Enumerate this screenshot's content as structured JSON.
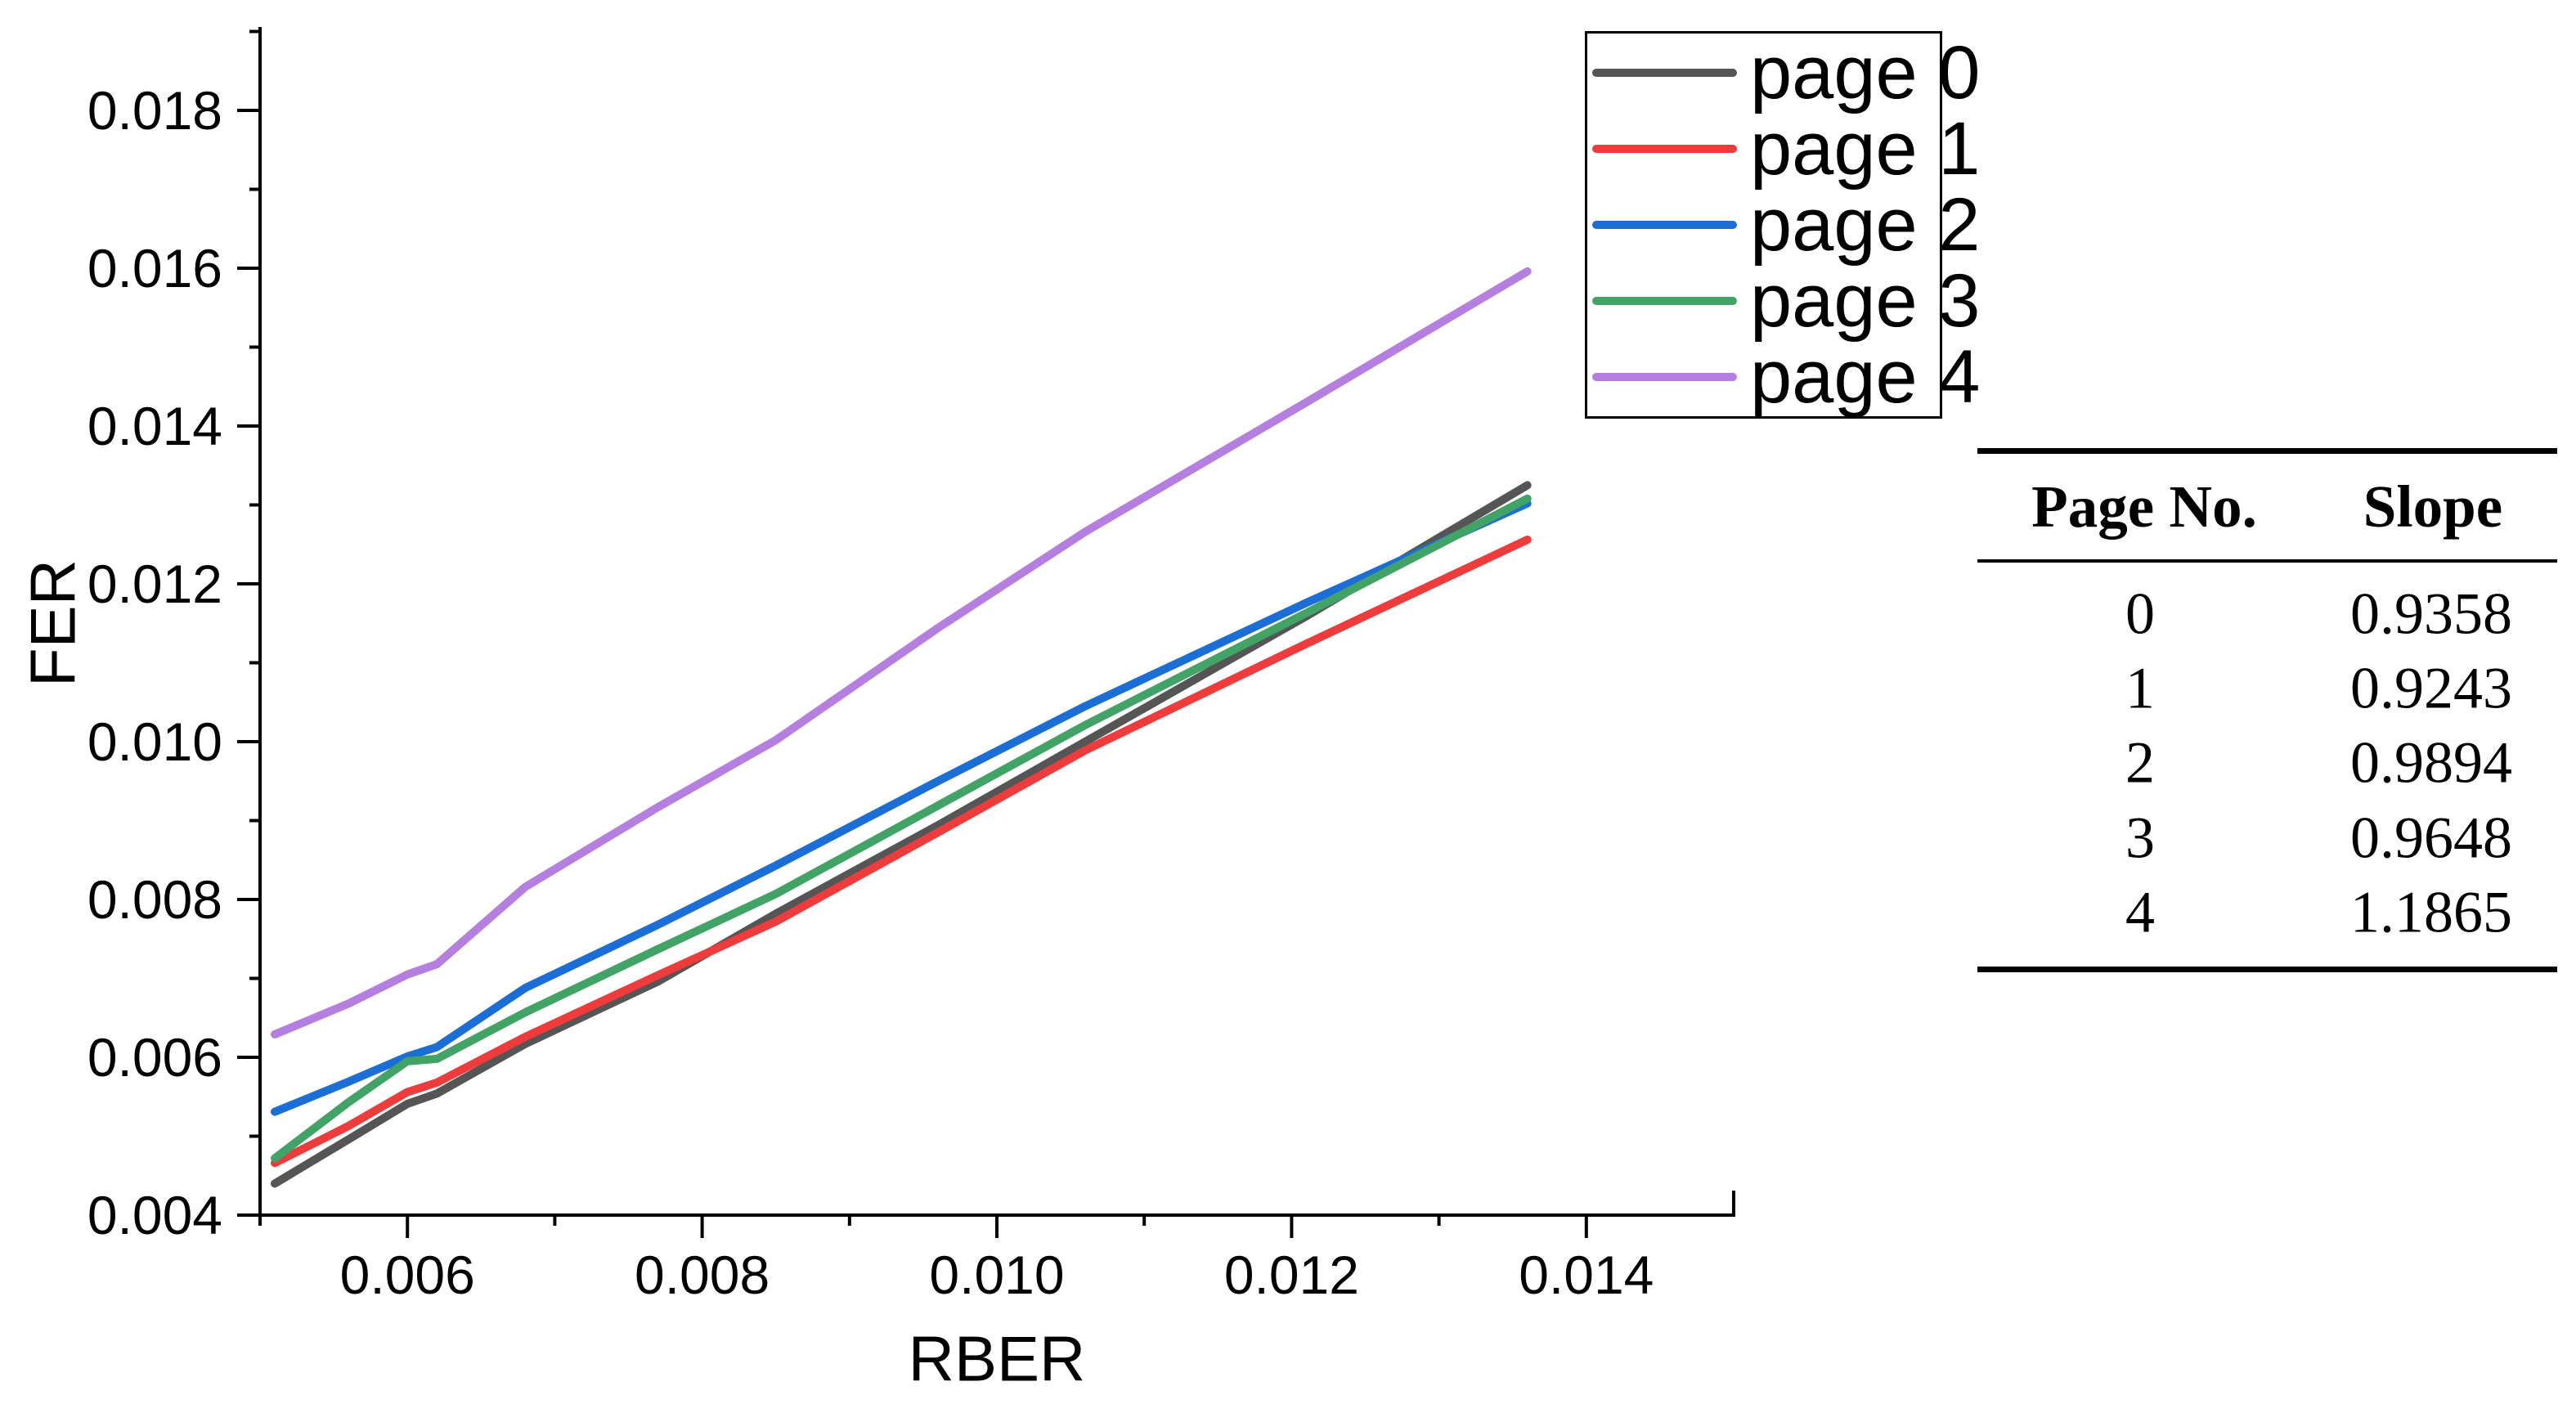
{
  "chart_data": {
    "type": "line",
    "title": "",
    "xlabel": "RBER",
    "ylabel": "FER",
    "xlim": [
      0.005,
      0.015
    ],
    "ylim": [
      0.004,
      0.019
    ],
    "grid": false,
    "legend_position": "top-right",
    "x_major_ticks": [
      0.006,
      0.008,
      0.01,
      0.012,
      0.014
    ],
    "x_tick_labels": [
      "0.006",
      "0.008",
      "0.010",
      "0.012",
      "0.014"
    ],
    "x_minor_ticks": [
      0.005,
      0.007,
      0.009,
      0.011,
      0.013,
      0.015
    ],
    "y_major_ticks": [
      0.004,
      0.006,
      0.008,
      0.01,
      0.012,
      0.014,
      0.016,
      0.018
    ],
    "y_tick_labels": [
      "0.004",
      "0.006",
      "0.008",
      "0.010",
      "0.012",
      "0.014",
      "0.016",
      "0.018"
    ],
    "y_minor_ticks": [
      0.005,
      0.007,
      0.009,
      0.011,
      0.013,
      0.015,
      0.017,
      0.019
    ],
    "x": [
      0.0051,
      0.0056,
      0.006,
      0.0062,
      0.0068,
      0.0077,
      0.0085,
      0.0096,
      0.0106,
      0.0121,
      0.0136
    ],
    "series": [
      {
        "name": "page 0",
        "color": "#555555",
        "values": [
          0.0044,
          0.00496,
          0.00541,
          0.00554,
          0.00617,
          0.00696,
          0.00782,
          0.00894,
          0.01,
          0.01159,
          0.01325
        ]
      },
      {
        "name": "page 1",
        "color": "#ee3b3c",
        "values": [
          0.00466,
          0.00513,
          0.00556,
          0.00568,
          0.00626,
          0.00704,
          0.00772,
          0.00885,
          0.00989,
          0.01124,
          0.01256
        ]
      },
      {
        "name": "page 2",
        "color": "#1b6ed6",
        "values": [
          0.00531,
          0.00569,
          0.00601,
          0.00613,
          0.00688,
          0.00768,
          0.00843,
          0.0095,
          0.01045,
          0.01176,
          0.01302
        ]
      },
      {
        "name": "page 3",
        "color": "#41a366",
        "values": [
          0.00472,
          0.00543,
          0.00595,
          0.00598,
          0.00657,
          0.00737,
          0.00807,
          0.00919,
          0.01021,
          0.01163,
          0.01308
        ]
      },
      {
        "name": "page 4",
        "color": "#b57fe0",
        "values": [
          0.00629,
          0.00668,
          0.00705,
          0.00718,
          0.00816,
          0.00917,
          0.01002,
          0.01144,
          0.01266,
          0.0143,
          0.01596
        ]
      }
    ]
  },
  "table": {
    "headers": [
      "Page No.",
      "Slope"
    ],
    "rows": [
      [
        "0",
        "0.9358"
      ],
      [
        "1",
        "0.9243"
      ],
      [
        "2",
        "0.9894"
      ],
      [
        "3",
        "0.9648"
      ],
      [
        "4",
        "1.1865"
      ]
    ]
  }
}
